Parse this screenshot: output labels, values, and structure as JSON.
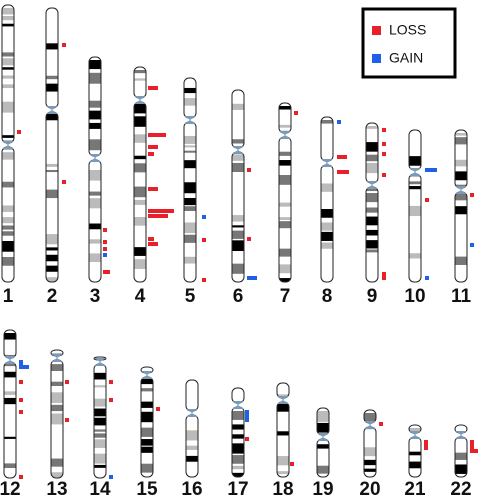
{
  "legend": {
    "items": [
      "LOSS",
      "GAIN"
    ]
  },
  "chromosomes": [
    "1",
    "2",
    "3",
    "4",
    "5",
    "6",
    "7",
    "8",
    "9",
    "10",
    "11",
    "12",
    "13",
    "14",
    "15",
    "16",
    "17",
    "18",
    "19",
    "20",
    "21",
    "22"
  ]
}
